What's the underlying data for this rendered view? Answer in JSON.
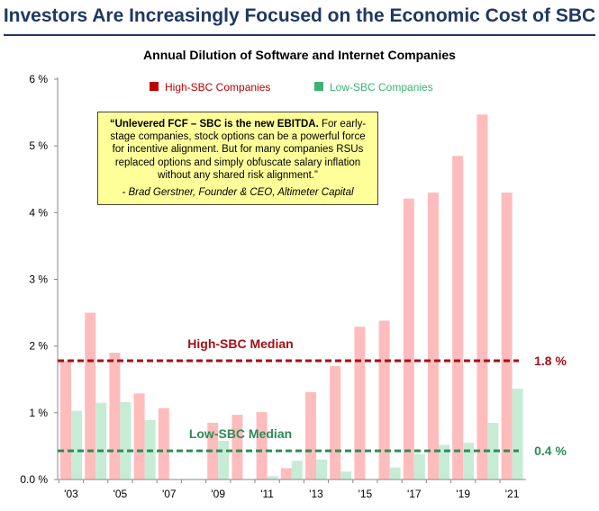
{
  "title": "Investors Are Increasingly Focused on the Economic Cost of SBC",
  "colors": {
    "title": "#1f3864",
    "high": "#ffbcbc",
    "low": "#c6ecd6",
    "high_median": "#a50f15",
    "low_median": "#2e8b57",
    "legend_high": "#c00000",
    "legend_low": "#3cb371"
  },
  "quote": {
    "bold_text": "“Unlevered FCF – SBC is the new EBITDA.",
    "text": " For early-stage companies, stock options can be a powerful force for incentive alignment. But for many companies RSUs replaced options and simply obfuscate salary inflation without any shared risk alignment.”",
    "attribution": "- Brad Gerstner, Founder & CEO, Altimeter Capital"
  },
  "chart_data": {
    "type": "bar",
    "title": "Annual Dilution of Software and Internet Companies",
    "xlabel": "",
    "ylabel": "",
    "ylim": [
      0,
      6
    ],
    "grid": false,
    "legend_placement": "top",
    "categories": [
      "2003",
      "2004",
      "2005",
      "2006",
      "2007",
      "2008",
      "2009",
      "2010",
      "2011",
      "2012",
      "2013",
      "2014",
      "2015",
      "2016",
      "2017",
      "2018",
      "2019",
      "2020",
      "2021"
    ],
    "x_tick_labels": [
      "'03",
      "'05",
      "'07",
      "'09",
      "'11",
      "'13",
      "'15",
      "'17",
      "'19",
      "'21"
    ],
    "x_tick_categories": [
      "2003",
      "2005",
      "2007",
      "2009",
      "2011",
      "2013",
      "2015",
      "2017",
      "2019",
      "2021"
    ],
    "y_ticks": [
      0,
      1,
      2,
      3,
      4,
      5,
      6
    ],
    "y_tick_labels": [
      "0.0 %",
      "1 %",
      "2 %",
      "3 %",
      "4 %",
      "5 %",
      "6 %"
    ],
    "series": [
      {
        "name": "High-SBC Companies",
        "color": "#ffbcbc",
        "values": [
          1.78,
          2.5,
          1.9,
          1.29,
          1.07,
          0.0,
          0.85,
          0.97,
          1.01,
          0.17,
          1.31,
          1.7,
          2.29,
          2.38,
          4.21,
          4.3,
          4.85,
          5.47,
          4.3
        ]
      },
      {
        "name": "Low-SBC Companies",
        "color": "#c6ecd6",
        "values": [
          1.03,
          1.15,
          1.16,
          0.89,
          0.0,
          0.0,
          0.58,
          0.0,
          0.05,
          0.28,
          0.3,
          0.12,
          0.0,
          0.18,
          0.38,
          0.52,
          0.55,
          0.85,
          1.36
        ]
      }
    ],
    "reference_lines": [
      {
        "label": "High-SBC Median",
        "value": 1.78,
        "value_label": "1.8 %",
        "color": "#a50f15"
      },
      {
        "label": "Low-SBC Median",
        "value": 0.43,
        "value_label": "0.4 %",
        "color": "#2e8b57"
      }
    ]
  }
}
